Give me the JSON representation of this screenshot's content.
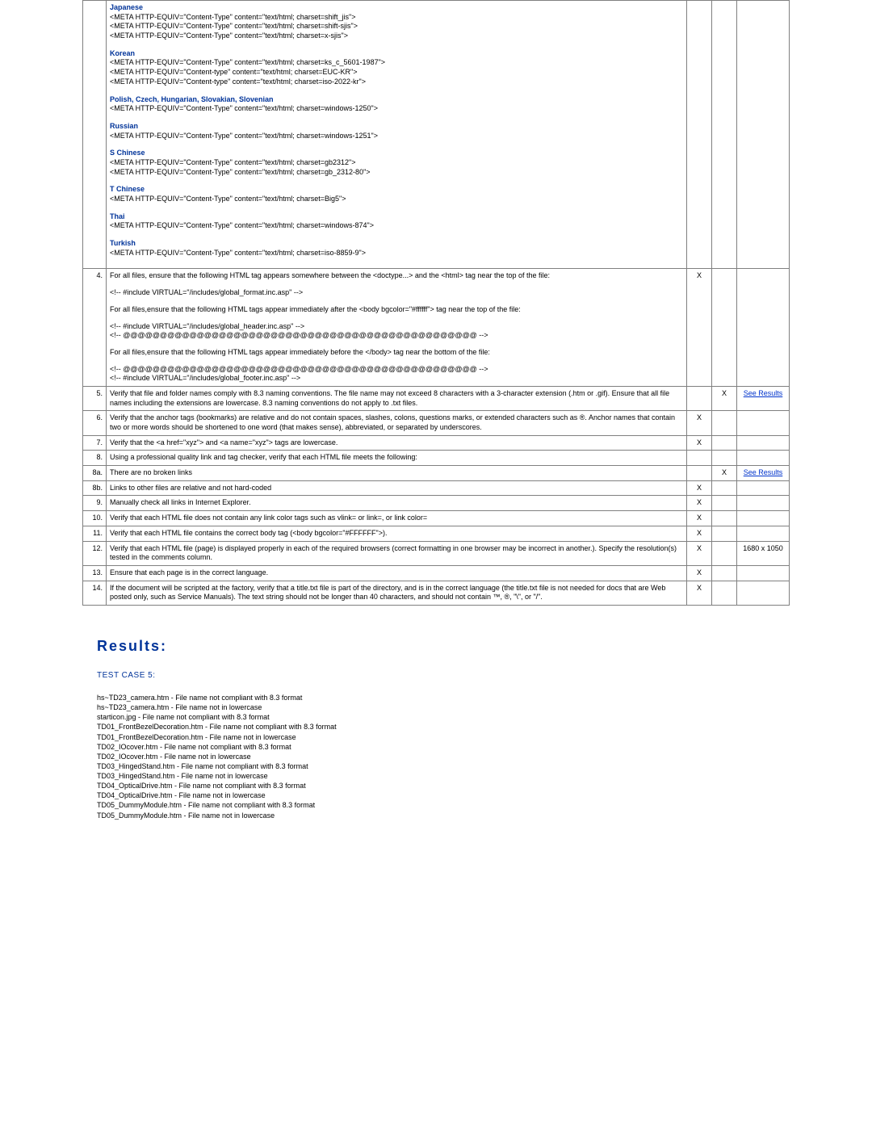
{
  "row3": {
    "langs": [
      {
        "name": "Japanese",
        "lines": [
          "<META HTTP-EQUIV=\"Content-Type\" content=\"text/html; charset=shift_jis\">",
          "<META HTTP-EQUIV=\"Content-Type\" content=\"text/html; charset=shift-sjis\">",
          "<META HTTP-EQUIV=\"Content-Type\" content=\"text/html; charset=x-sjis\">"
        ]
      },
      {
        "name": "Korean",
        "lines": [
          "<META HTTP-EQUIV=\"Content-Type\" content=\"text/html; charset=ks_c_5601-1987\">",
          "<META HTTP-EQUIV=\"Content-type\" content=\"text/html; charset=EUC-KR\">",
          "<META HTTP-EQUIV=\"Content-type\" content=\"text/html; charset=iso-2022-kr\">"
        ]
      },
      {
        "name": "Polish, Czech, Hungarian, Slovakian, Slovenian",
        "lines": [
          "<META HTTP-EQUIV=\"Content-Type\" content=\"text/html; charset=windows-1250\">"
        ]
      },
      {
        "name": "Russian",
        "lines": [
          "<META HTTP-EQUIV=\"Content-Type\" content=\"text/html; charset=windows-1251\">"
        ]
      },
      {
        "name": "S Chinese",
        "lines": [
          "<META HTTP-EQUIV=\"Content-Type\" content=\"text/html; charset=gb2312\">",
          "<META HTTP-EQUIV=\"Content-Type\" content=\"text/html; charset=gb_2312-80\">"
        ]
      },
      {
        "name": "T Chinese",
        "lines": [
          "<META HTTP-EQUIV=\"Content-Type\" content=\"text/html; charset=Big5\">"
        ]
      },
      {
        "name": "Thai",
        "lines": [
          "<META HTTP-EQUIV=\"Content-Type\" content=\"text/html; charset=windows-874\">"
        ]
      },
      {
        "name": "Turkish",
        "lines": [
          "<META HTTP-EQUIV=\"Content-Type\" content=\"text/html; charset=iso-8859-9\">"
        ]
      }
    ]
  },
  "rows": [
    {
      "n": "4.",
      "c1": "X",
      "c2": "",
      "c3": "",
      "body": [
        {
          "t": "p",
          "txt": "For all files, ensure that the following HTML tag appears somewhere between the <doctype...> and the <html> tag near the top of the file:"
        },
        {
          "t": "br"
        },
        {
          "t": "p",
          "txt": "<!-- #include VIRTUAL=\"/includes/global_format.inc.asp\" -->"
        },
        {
          "t": "br"
        },
        {
          "t": "p",
          "txt": "For all files,ensure that the following HTML tags appear immediately after the <body bgcolor=\"#ffffff\"> tag near the top of the file:"
        },
        {
          "t": "br"
        },
        {
          "t": "p",
          "txt": "<!-- #include VIRTUAL=\"/includes/global_header.inc.asp\" -->"
        },
        {
          "t": "p",
          "txt": "<!-- @@@@@@@@@@@@@@@@@@@@@@@@@@@@@@@@@@@@@@@@@@@@@@@@ -->"
        },
        {
          "t": "br"
        },
        {
          "t": "p",
          "txt": "For all files,ensure that the following HTML tags appear immediately before the </body> tag near the bottom of the file:"
        },
        {
          "t": "br"
        },
        {
          "t": "p",
          "txt": "<!-- @@@@@@@@@@@@@@@@@@@@@@@@@@@@@@@@@@@@@@@@@@@@@@@@ -->"
        },
        {
          "t": "p",
          "txt": "<!-- #include VIRTUAL=\"/includes/global_footer.inc.asp\" -->"
        }
      ]
    },
    {
      "n": "5.",
      "c1": "",
      "c2": "X",
      "c3link": "See Results",
      "body": [
        {
          "t": "p",
          "txt": "Verify that file and folder names comply with 8.3 naming conventions. The file name may not exceed 8 characters with a 3-character extension (.htm or .gif). Ensure that all file names including the extensions are lowercase. 8.3 naming conventions do not apply to .txt files."
        }
      ]
    },
    {
      "n": "6.",
      "c1": "X",
      "c2": "",
      "c3": "",
      "body": [
        {
          "t": "p",
          "txt": "Verify that the anchor tags (bookmarks) are relative and do not contain spaces, slashes, colons, questions marks, or extended characters such as ®. Anchor names that contain two or more words should be shortened to one word (that makes sense), abbreviated, or separated by underscores."
        }
      ]
    },
    {
      "n": "7.",
      "c1": "X",
      "c2": "",
      "c3": "",
      "body": [
        {
          "t": "p",
          "txt": "Verify that the <a href=\"xyz\"> and <a name=\"xyz\"> tags are lowercase."
        }
      ]
    },
    {
      "n": "8.",
      "c1": "",
      "c2": "",
      "c3": "",
      "body": [
        {
          "t": "p",
          "txt": "Using a professional quality link and tag checker, verify that each HTML file meets the following:"
        }
      ]
    },
    {
      "n": "8a.",
      "c1": "",
      "c2": "X",
      "c3link": "See Results",
      "body": [
        {
          "t": "p",
          "txt": "There are no broken links"
        }
      ]
    },
    {
      "n": "8b.",
      "c1": "X",
      "c2": "",
      "c3": "",
      "body": [
        {
          "t": "p",
          "txt": "Links to other files are relative and not hard-coded"
        }
      ]
    },
    {
      "n": "9.",
      "c1": "X",
      "c2": "",
      "c3": "",
      "body": [
        {
          "t": "p",
          "txt": "Manually check all links in Internet Explorer."
        }
      ]
    },
    {
      "n": "10.",
      "c1": "X",
      "c2": "",
      "c3": "",
      "body": [
        {
          "t": "p",
          "txt": "Verify that each HTML file does not contain any link color tags such as vlink= or link=, or link color="
        }
      ]
    },
    {
      "n": "11.",
      "c1": "X",
      "c2": "",
      "c3": "",
      "body": [
        {
          "t": "p",
          "txt": "Verify that each HTML file contains the correct body tag (<body bgcolor=\"#FFFFFF\">)."
        }
      ]
    },
    {
      "n": "12.",
      "c1": "X",
      "c2": "",
      "c3": "1680 x 1050",
      "body": [
        {
          "t": "p",
          "txt": "Verify that each HTML file (page) is displayed properly in each of the required browsers (correct formatting in one browser may be incorrect in another.). Specify the resolution(s) tested in the comments column."
        }
      ]
    },
    {
      "n": "13.",
      "c1": "X",
      "c2": "",
      "c3": "",
      "body": [
        {
          "t": "p",
          "txt": "Ensure that each page is in the correct language."
        }
      ]
    },
    {
      "n": "14.",
      "c1": "X",
      "c2": "",
      "c3": "",
      "body": [
        {
          "t": "p",
          "txt": "If the document will be scripted at the factory, verify that a title.txt file is part of the directory, and is in the correct language (the title.txt file is not needed for docs that are Web posted only, such as Service Manuals). The text string should not be longer than 40 characters, and should not contain ™, ®, \"\\\", or \"/\"."
        }
      ]
    }
  ],
  "results": {
    "heading": "Results:",
    "case_label": "TEST CASE 5:",
    "lines": [
      "hs~TD23_camera.htm - File name not compliant with 8.3 format",
      "hs~TD23_camera.htm - File name not in lowercase",
      "starticon.jpg - File name not compliant with 8.3 format",
      "TD01_FrontBezelDecoration.htm - File name not compliant with 8.3 format",
      "TD01_FrontBezelDecoration.htm - File name not in lowercase",
      "TD02_IOcover.htm - File name not compliant with 8.3 format",
      "TD02_IOcover.htm - File name not in lowercase",
      "TD03_HingedStand.htm - File name not compliant with 8.3 format",
      "TD03_HingedStand.htm - File name not in lowercase",
      "TD04_OpticalDrive.htm - File name not compliant with 8.3 format",
      "TD04_OpticalDrive.htm - File name not in lowercase",
      "TD05_DummyModule.htm - File name not compliant with 8.3 format",
      "TD05_DummyModule.htm - File name not in lowercase"
    ]
  }
}
